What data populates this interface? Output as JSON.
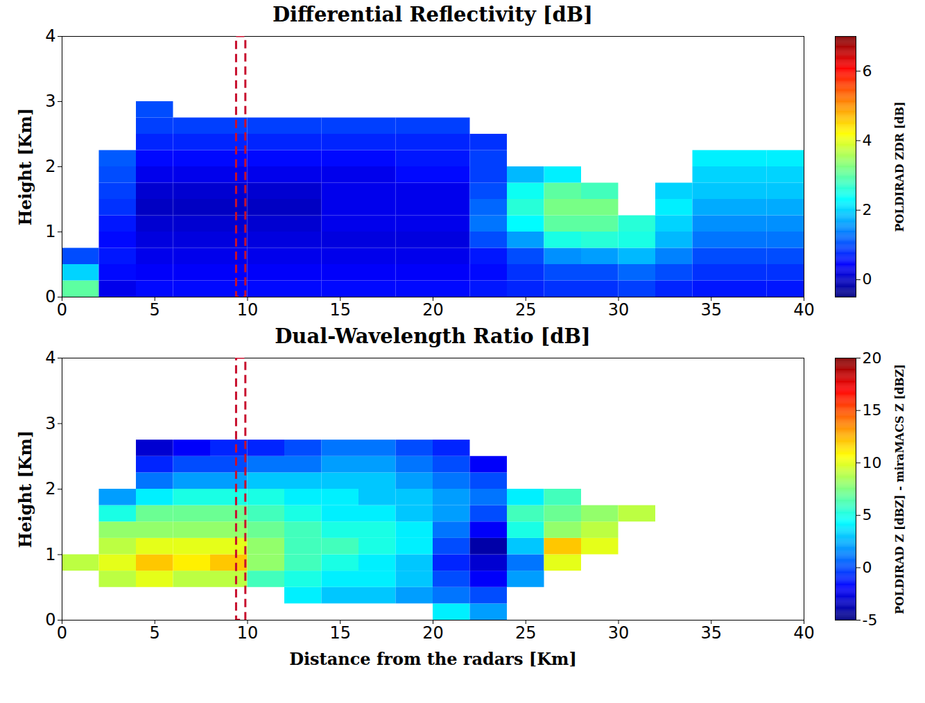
{
  "chart_data": [
    {
      "type": "heatmap",
      "title": "Differential Reflectivity [dB]",
      "ylabel": "Height [Km]",
      "xlim": [
        0,
        40
      ],
      "xticks": [
        0,
        5,
        10,
        15,
        20,
        25,
        30,
        35,
        40
      ],
      "ylim": [
        0,
        4
      ],
      "yticks": [
        0,
        1,
        2,
        3,
        4
      ],
      "x_bins": [
        0,
        2,
        4,
        6,
        8,
        10,
        12,
        14,
        16,
        18,
        20,
        22,
        24,
        26,
        28,
        30,
        32,
        34,
        36,
        38,
        40
      ],
      "y_bins": [
        0,
        0.25,
        0.5,
        0.75,
        1,
        1.25,
        1.5,
        1.75,
        2,
        2.25,
        2.5,
        2.75,
        3
      ],
      "values": [
        [
          3,
          0.3,
          0.5,
          0.5,
          0.5,
          0.5,
          0.5,
          0.5,
          0.5,
          0.5,
          0.5,
          0.6,
          0.7,
          0.8,
          0.8,
          0.9,
          0.7,
          0.6,
          0.6,
          0.6
        ],
        [
          2,
          0.5,
          0.4,
          0.4,
          0.4,
          0.4,
          0.4,
          0.4,
          0.4,
          0.4,
          0.4,
          0.5,
          0.8,
          1.0,
          1.0,
          1.2,
          1.0,
          0.8,
          0.8,
          0.8
        ],
        [
          1,
          0.6,
          0.3,
          0.3,
          0.3,
          0.3,
          0.3,
          0.3,
          0.3,
          0.3,
          0.3,
          0.6,
          1.0,
          1.5,
          1.6,
          1.8,
          1.4,
          1.0,
          1.0,
          1.0
        ],
        [
          null,
          0.5,
          0.2,
          0.2,
          0.2,
          0.2,
          0.2,
          0.2,
          0.2,
          0.2,
          0.2,
          1.0,
          1.6,
          2.5,
          2.6,
          2.5,
          1.8,
          1.3,
          1.3,
          1.3
        ],
        [
          null,
          0.6,
          0.1,
          0.1,
          0.1,
          0.1,
          0.1,
          0.3,
          0.3,
          0.3,
          0.3,
          1.3,
          2.3,
          3.0,
          3.0,
          2.6,
          2.0,
          1.5,
          1.5,
          1.5
        ],
        [
          null,
          0.8,
          0.0,
          0.0,
          0.0,
          0.0,
          0.0,
          0.3,
          0.3,
          0.3,
          0.3,
          1.2,
          2.6,
          3.2,
          3.2,
          null,
          2.2,
          1.7,
          1.7,
          1.7
        ],
        [
          null,
          0.9,
          0.1,
          0.1,
          0.1,
          0.1,
          0.1,
          0.3,
          0.3,
          0.3,
          0.3,
          1.0,
          2.4,
          3.0,
          2.8,
          null,
          2.0,
          1.9,
          1.9,
          1.9
        ],
        [
          null,
          1.0,
          0.3,
          0.3,
          0.3,
          0.3,
          0.3,
          0.3,
          0.3,
          0.5,
          0.5,
          0.9,
          1.8,
          2.2,
          null,
          null,
          null,
          2.0,
          2.0,
          2.0
        ],
        [
          null,
          1.1,
          0.5,
          0.5,
          0.5,
          0.5,
          0.5,
          0.5,
          0.5,
          0.6,
          0.6,
          0.9,
          null,
          null,
          null,
          null,
          null,
          2.2,
          2.2,
          2.2
        ],
        [
          null,
          null,
          0.7,
          0.7,
          0.7,
          0.7,
          0.7,
          0.7,
          0.7,
          0.7,
          0.7,
          0.8,
          null,
          null,
          null,
          null,
          null,
          null,
          null,
          null
        ],
        [
          null,
          null,
          0.9,
          0.9,
          0.9,
          0.9,
          0.9,
          0.9,
          0.9,
          0.9,
          0.9,
          null,
          null,
          null,
          null,
          null,
          null,
          null,
          null,
          null
        ],
        [
          null,
          null,
          1.0,
          null,
          null,
          null,
          null,
          null,
          null,
          null,
          null,
          null,
          null,
          null,
          null,
          null,
          null,
          null,
          null,
          null
        ]
      ],
      "colorbar": {
        "label": "POLDIRAD ZDR [dB]",
        "range": [
          -0.5,
          7
        ],
        "ticks": [
          0,
          2,
          4,
          6
        ]
      },
      "highlight": [
        9.4,
        9.9
      ]
    },
    {
      "type": "heatmap",
      "title": "Dual-Wavelength Ratio [dB]",
      "xlabel": "Distance from the radars [Km]",
      "ylabel": "Height [Km]",
      "xlim": [
        0,
        40
      ],
      "xticks": [
        0,
        5,
        10,
        15,
        20,
        25,
        30,
        35,
        40
      ],
      "ylim": [
        0,
        4
      ],
      "yticks": [
        0,
        1,
        2,
        3,
        4
      ],
      "x_bins": [
        0,
        2,
        4,
        6,
        8,
        10,
        12,
        14,
        16,
        18,
        20,
        22,
        24,
        26,
        28,
        30,
        32,
        34,
        36,
        38,
        40
      ],
      "y_bins": [
        0,
        0.25,
        0.5,
        0.75,
        1,
        1.25,
        1.5,
        1.75,
        2,
        2.25,
        2.5,
        2.75,
        3
      ],
      "values": [
        [
          null,
          null,
          null,
          null,
          null,
          null,
          null,
          null,
          null,
          null,
          4,
          2,
          null,
          null,
          null,
          null,
          null,
          null,
          null,
          null
        ],
        [
          null,
          null,
          null,
          null,
          null,
          null,
          4,
          3,
          3,
          2,
          1,
          0,
          null,
          null,
          null,
          null,
          null,
          null,
          null,
          null
        ],
        [
          null,
          9,
          10,
          9,
          9,
          6,
          5,
          4,
          4,
          3,
          0,
          -2,
          2,
          null,
          null,
          null,
          null,
          null,
          null,
          null
        ],
        [
          9,
          10,
          12,
          11,
          12,
          8,
          6,
          5,
          4,
          3,
          -1,
          -3,
          1,
          10,
          null,
          null,
          null,
          null,
          null,
          null
        ],
        [
          null,
          9,
          10,
          10,
          10,
          8,
          6,
          6,
          5,
          4,
          0,
          -4,
          3,
          12,
          10,
          null,
          null,
          null,
          null,
          null
        ],
        [
          null,
          8,
          8,
          8,
          8,
          7,
          6,
          5,
          5,
          4,
          1,
          -2,
          5,
          8,
          9,
          null,
          null,
          null,
          null,
          null
        ],
        [
          null,
          5,
          7,
          7,
          7,
          6,
          5,
          4,
          4,
          3,
          2,
          0,
          6,
          7,
          8,
          9,
          null,
          null,
          null,
          null
        ],
        [
          null,
          2,
          4,
          5,
          5,
          5,
          4,
          4,
          3,
          3,
          2,
          1,
          4,
          6,
          null,
          null,
          null,
          null,
          null,
          null
        ],
        [
          null,
          null,
          1,
          2,
          2,
          3,
          3,
          3,
          3,
          2,
          1,
          0,
          null,
          null,
          null,
          null,
          null,
          null,
          null,
          null
        ],
        [
          null,
          null,
          -1,
          0,
          0,
          1,
          1,
          2,
          2,
          1,
          0,
          -2,
          null,
          null,
          null,
          null,
          null,
          null,
          null,
          null
        ],
        [
          null,
          null,
          -3,
          -2,
          -1,
          -1,
          0,
          1,
          1,
          0,
          -1,
          null,
          null,
          null,
          null,
          null,
          null,
          null,
          null,
          null
        ],
        [
          null,
          null,
          null,
          null,
          null,
          null,
          null,
          null,
          null,
          null,
          null,
          null,
          null,
          null,
          null,
          null,
          null,
          null,
          null,
          null
        ]
      ],
      "colorbar": {
        "label": "POLDIRAD Z [dBZ] - miraMACS Z [dBZ]",
        "range": [
          -5,
          20
        ],
        "ticks": [
          -5,
          0,
          5,
          10,
          15,
          20
        ]
      },
      "highlight": [
        9.4,
        9.9
      ]
    }
  ]
}
